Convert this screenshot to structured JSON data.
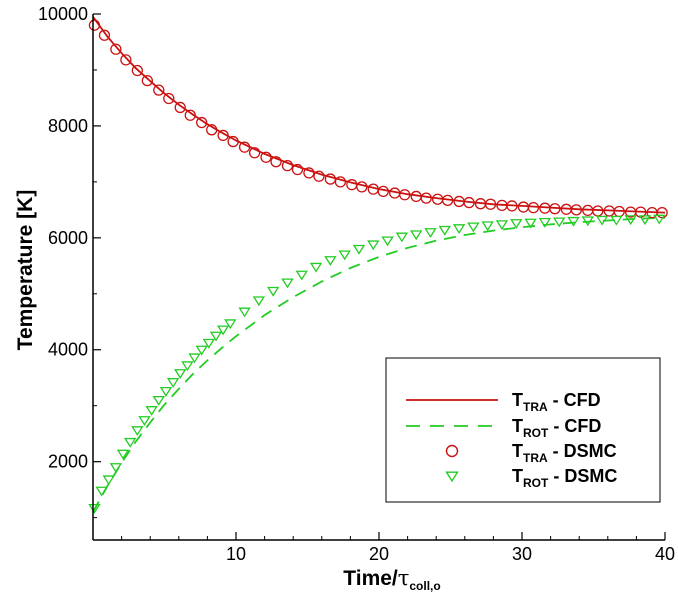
{
  "chart_data": {
    "type": "line",
    "xlabel": {
      "main": "Time/",
      "symbol": "τ",
      "sub": "coll,o"
    },
    "ylabel": "Temperature [K]",
    "xlim": [
      0,
      40
    ],
    "ylim": [
      600,
      10000
    ],
    "xticks": [
      10,
      20,
      30,
      40
    ],
    "yticks": [
      2000,
      4000,
      6000,
      8000,
      10000
    ],
    "grid": false,
    "legend_position": "lower-right",
    "colors": {
      "tra": "#cc1111",
      "rot": "#22cc22",
      "axis": "#000000"
    },
    "series": [
      {
        "name": "T_TRA - CFD",
        "label_main": "T",
        "label_sub": "TRA",
        "label_rest": " - CFD",
        "style": "solid",
        "color": "#cc1111",
        "x": [
          0,
          1,
          2,
          3,
          4,
          5,
          6,
          7,
          8,
          9,
          10,
          12,
          14,
          16,
          18,
          20,
          22,
          24,
          26,
          28,
          30,
          32,
          34,
          36,
          38,
          40
        ],
        "y": [
          9950,
          9600,
          9300,
          9030,
          8800,
          8580,
          8380,
          8200,
          8030,
          7880,
          7740,
          7500,
          7300,
          7130,
          6990,
          6870,
          6780,
          6710,
          6650,
          6600,
          6570,
          6540,
          6510,
          6490,
          6470,
          6450
        ]
      },
      {
        "name": "T_ROT - CFD",
        "label_main": "T",
        "label_sub": "ROT",
        "label_rest": " - CFD",
        "style": "dashed",
        "color": "#22cc22",
        "x": [
          0,
          1,
          2,
          3,
          4,
          5,
          6,
          7,
          8,
          9,
          10,
          12,
          14,
          16,
          18,
          20,
          22,
          24,
          26,
          28,
          30,
          32,
          34,
          36,
          38,
          40
        ],
        "y": [
          1100,
          1560,
          1980,
          2360,
          2700,
          3020,
          3300,
          3570,
          3810,
          4030,
          4240,
          4620,
          4940,
          5220,
          5460,
          5660,
          5820,
          5950,
          6050,
          6130,
          6190,
          6240,
          6280,
          6310,
          6340,
          6360
        ]
      },
      {
        "name": "T_TRA - DSMC",
        "label_main": "T",
        "label_sub": "TRA",
        "label_rest": " - DSMC",
        "style": "circle",
        "color": "#cc1111",
        "x": [
          0.1,
          0.8,
          1.6,
          2.3,
          3.1,
          3.8,
          4.6,
          5.3,
          6.1,
          6.8,
          7.6,
          8.3,
          9.1,
          9.8,
          10.6,
          11.3,
          12.1,
          12.8,
          13.6,
          14.3,
          15.1,
          15.8,
          16.6,
          17.3,
          18.1,
          18.8,
          19.6,
          20.3,
          21.1,
          21.8,
          22.6,
          23.3,
          24.1,
          24.8,
          25.6,
          26.3,
          27.1,
          27.8,
          28.6,
          29.3,
          30.1,
          30.8,
          31.6,
          32.3,
          33.1,
          33.8,
          34.6,
          35.3,
          36.1,
          36.8,
          37.6,
          38.3,
          39.1,
          39.8
        ],
        "y": [
          9800,
          9620,
          9370,
          9180,
          8990,
          8810,
          8640,
          8490,
          8330,
          8190,
          8060,
          7930,
          7830,
          7720,
          7620,
          7520,
          7440,
          7360,
          7290,
          7220,
          7160,
          7100,
          7050,
          7000,
          6950,
          6910,
          6870,
          6830,
          6800,
          6770,
          6740,
          6710,
          6690,
          6670,
          6650,
          6630,
          6610,
          6600,
          6580,
          6570,
          6550,
          6540,
          6530,
          6520,
          6510,
          6500,
          6490,
          6480,
          6480,
          6470,
          6460,
          6460,
          6450,
          6450
        ]
      },
      {
        "name": "T_ROT - DSMC",
        "label_main": "T",
        "label_sub": "ROT",
        "label_rest": " - DSMC",
        "style": "triangle",
        "color": "#22cc22",
        "x": [
          0.1,
          0.6,
          1.1,
          1.6,
          2.1,
          2.6,
          3.1,
          3.6,
          4.1,
          4.6,
          5.1,
          5.6,
          6.1,
          6.6,
          7.1,
          7.6,
          8.1,
          8.6,
          9.1,
          9.6,
          10.6,
          11.6,
          12.6,
          13.6,
          14.6,
          15.6,
          16.6,
          17.6,
          18.6,
          19.6,
          20.6,
          21.6,
          22.6,
          23.6,
          24.6,
          25.6,
          26.6,
          27.6,
          28.6,
          29.6,
          30.6,
          31.6,
          32.6,
          33.6,
          34.6,
          35.6,
          36.6,
          37.6,
          38.6,
          39.6
        ],
        "y": [
          1170,
          1480,
          1680,
          1900,
          2140,
          2350,
          2560,
          2740,
          2920,
          3100,
          3260,
          3420,
          3580,
          3720,
          3860,
          4000,
          4120,
          4250,
          4360,
          4470,
          4680,
          4880,
          5050,
          5200,
          5340,
          5480,
          5600,
          5700,
          5800,
          5880,
          5950,
          6020,
          6060,
          6100,
          6140,
          6170,
          6200,
          6220,
          6240,
          6260,
          6270,
          6280,
          6290,
          6300,
          6310,
          6320,
          6320,
          6330,
          6330,
          6340
        ]
      }
    ]
  }
}
